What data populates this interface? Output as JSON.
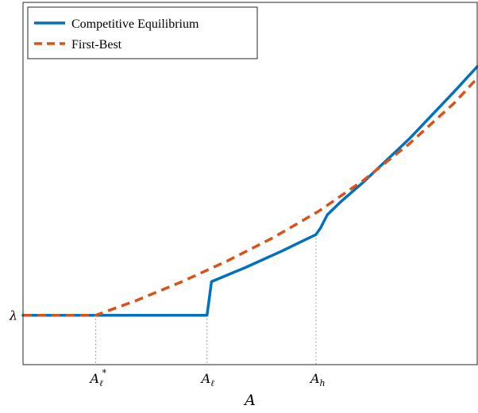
{
  "chart_data": {
    "type": "line",
    "title": "",
    "xlabel": "A",
    "ylabel": "",
    "xlim": [
      0,
      10
    ],
    "ylim": [
      -1,
      10
    ],
    "grid": false,
    "legend_position": "top-left",
    "x_ticks": [
      {
        "x": 1.6,
        "base": "A",
        "sub": "ℓ",
        "sup": "*"
      },
      {
        "x": 4.05,
        "base": "A",
        "sub": "ℓ",
        "sup": ""
      },
      {
        "x": 6.45,
        "base": "A",
        "sub": "h",
        "sup": ""
      }
    ],
    "y_ticks": [
      {
        "y": 0.5,
        "label": "λ"
      }
    ],
    "series": [
      {
        "name": "Competitive Equilibrium",
        "color": "#0072BD",
        "style": "solid",
        "x": [
          0,
          1.6,
          4.05,
          4.15,
          4.9,
          5.7,
          6.45,
          6.55,
          6.7,
          7.0,
          7.5,
          8.5,
          9.5,
          10.0
        ],
        "y": [
          0.5,
          0.5,
          0.5,
          1.52,
          1.95,
          2.45,
          2.95,
          3.15,
          3.55,
          3.95,
          4.55,
          5.85,
          7.3,
          8.05
        ]
      },
      {
        "name": "First-Best",
        "color": "#D95319",
        "style": "dashed",
        "x": [
          0,
          1.6,
          2.5,
          3.5,
          4.5,
          5.5,
          6.5,
          7.5,
          8.5,
          9.5,
          10.0
        ],
        "y": [
          0.5,
          0.5,
          0.95,
          1.52,
          2.15,
          2.85,
          3.65,
          4.6,
          5.7,
          6.95,
          7.7
        ]
      }
    ]
  }
}
